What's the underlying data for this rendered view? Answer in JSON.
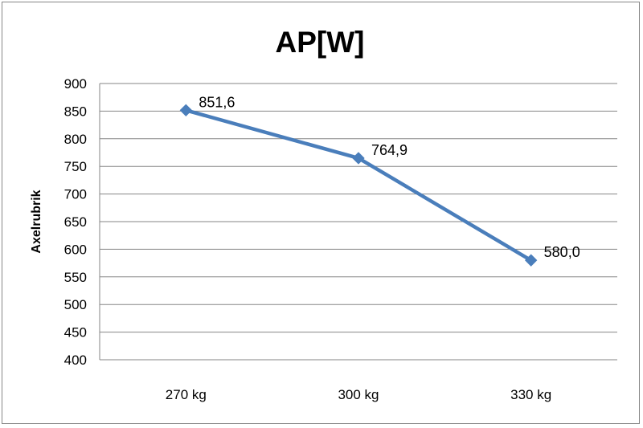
{
  "chart_data": {
    "type": "line",
    "title": "AP[W]",
    "xlabel": "",
    "ylabel": "Axelrubrik",
    "categories": [
      "270 kg",
      "300 kg",
      "330 kg"
    ],
    "series": [
      {
        "values": [
          851.6,
          764.9,
          580.0
        ],
        "labels": [
          "851,6",
          "764,9",
          "580,0"
        ]
      }
    ],
    "ylim": [
      400,
      900
    ],
    "ytick_step": 50,
    "grid": true,
    "legend": "none",
    "line_color": "#4a7ebb",
    "grid_color": "#868686"
  }
}
